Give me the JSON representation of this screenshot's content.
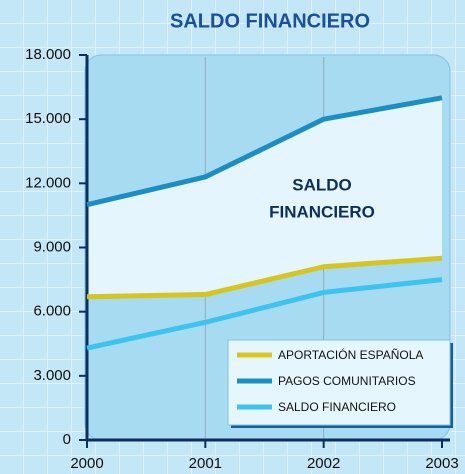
{
  "chart_data": {
    "type": "line",
    "title": "SALDO FINANCIERO",
    "categories": [
      "2000",
      "2001",
      "2002",
      "2003"
    ],
    "series": [
      {
        "name": "APORTACIÓN ESPAÑOLA",
        "color": "#d6c51c",
        "values": [
          6700,
          6800,
          8100,
          8500
        ]
      },
      {
        "name": "PAGOS COMUNITARIOS",
        "color": "#1b8ec2",
        "values": [
          11000,
          12300,
          15000,
          16000
        ]
      },
      {
        "name": "SALDO FINANCIERO",
        "color": "#3cc3ee",
        "values": [
          4300,
          5500,
          6900,
          7500
        ]
      }
    ],
    "annotation": [
      "SALDO",
      "FINANCIERO"
    ],
    "ylim": [
      0,
      18000
    ],
    "yticks": [
      0,
      {
        "value": 3000,
        "label": "3.000"
      },
      {
        "value": 6000,
        "label": "6.000"
      },
      {
        "value": 9000,
        "label": "9.000"
      },
      {
        "value": 12000,
        "label": "12.000"
      },
      {
        "value": 15000,
        "label": "15.000"
      },
      {
        "value": 18000,
        "label": "18.000"
      }
    ],
    "grid": true,
    "legend": "lower right"
  }
}
